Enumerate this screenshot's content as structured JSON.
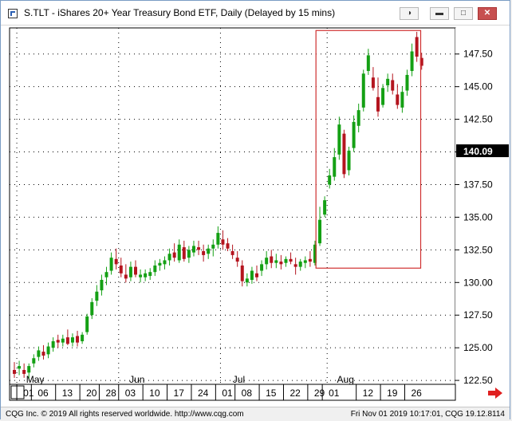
{
  "window": {
    "title": "S.TLT - iShares 20+ Year Treasury Bond ETF, Daily (Delayed by 15 mins)",
    "buttons": [
      "attach-icon",
      "minimize-icon",
      "restore-icon",
      "close-icon"
    ]
  },
  "footer": {
    "left": "CQG Inc. © 2019 All rights reserved worldwide. http://www.cqg.com",
    "right": "Fri Nov 01 2019 10:17:01, CQG 19.12.8114"
  },
  "colors": {
    "up": "#14a014",
    "down": "#b4141e",
    "box": "#d03030",
    "grid": "#000000",
    "last_bg": "#000000",
    "nav_arrow": "#e02020"
  },
  "chart_data": {
    "type": "candlestick",
    "ylim": [
      122.2,
      149.5
    ],
    "y_ticks": [
      122.5,
      125.0,
      127.5,
      130.0,
      132.5,
      135.0,
      137.5,
      140.0,
      142.5,
      145.0,
      147.5
    ],
    "y_tick_labels": [
      "122.50",
      "125.00",
      "127.50",
      "130.00",
      "132.50",
      "135.00",
      "137.50",
      "140.00",
      "142.50",
      "145.00",
      "147.50"
    ],
    "last_price_label": "140.09",
    "last_price": 140.09,
    "month_labels": [
      {
        "label": "May",
        "slot": 1
      },
      {
        "label": "Jun",
        "slot": 22
      },
      {
        "label": "Jul",
        "slot": 43
      },
      {
        "label": "Aug",
        "slot": 65
      }
    ],
    "x_tick_labels": [
      {
        "label": "01",
        "slot": 1
      },
      {
        "label": "06",
        "slot": 4
      },
      {
        "label": "13",
        "slot": 9
      },
      {
        "label": "20",
        "slot": 14
      },
      {
        "label": "28",
        "slot": 18
      },
      {
        "label": "03",
        "slot": 22
      },
      {
        "label": "10",
        "slot": 27
      },
      {
        "label": "17",
        "slot": 32
      },
      {
        "label": "24",
        "slot": 37
      },
      {
        "label": "01",
        "slot": 42
      },
      {
        "label": "08",
        "slot": 46
      },
      {
        "label": "15",
        "slot": 51
      },
      {
        "label": "22",
        "slot": 56
      },
      {
        "label": "29",
        "slot": 61
      },
      {
        "label": "01",
        "slot": 64
      },
      {
        "label": "12",
        "slot": 71
      },
      {
        "label": "19",
        "slot": 76
      },
      {
        "label": "26",
        "slot": 81
      }
    ],
    "highlight_box": {
      "from_slot": 62.2,
      "to_slot": 83.8,
      "y_top": 149.3,
      "y_bottom": 131.1
    },
    "candles": [
      {
        "o": 123.3,
        "h": 123.9,
        "l": 122.7,
        "c": 123.0
      },
      {
        "o": 123.4,
        "h": 124.0,
        "l": 122.9,
        "c": 123.6
      },
      {
        "o": 123.3,
        "h": 123.8,
        "l": 122.7,
        "c": 123.0
      },
      {
        "o": 123.1,
        "h": 123.8,
        "l": 122.6,
        "c": 123.6
      },
      {
        "o": 123.8,
        "h": 124.5,
        "l": 123.5,
        "c": 124.2
      },
      {
        "o": 124.3,
        "h": 125.1,
        "l": 124.0,
        "c": 124.8
      },
      {
        "o": 124.7,
        "h": 125.2,
        "l": 124.1,
        "c": 124.4
      },
      {
        "o": 124.5,
        "h": 125.4,
        "l": 124.2,
        "c": 125.1
      },
      {
        "o": 125.0,
        "h": 125.8,
        "l": 124.7,
        "c": 125.5
      },
      {
        "o": 125.6,
        "h": 126.0,
        "l": 125.0,
        "c": 125.4
      },
      {
        "o": 125.4,
        "h": 126.0,
        "l": 125.1,
        "c": 125.7
      },
      {
        "o": 125.8,
        "h": 126.4,
        "l": 125.2,
        "c": 125.3
      },
      {
        "o": 125.4,
        "h": 126.1,
        "l": 125.1,
        "c": 125.8
      },
      {
        "o": 125.9,
        "h": 126.3,
        "l": 125.1,
        "c": 125.4
      },
      {
        "o": 125.5,
        "h": 126.2,
        "l": 125.3,
        "c": 126.0
      },
      {
        "o": 126.2,
        "h": 127.6,
        "l": 126.0,
        "c": 127.4
      },
      {
        "o": 127.5,
        "h": 128.8,
        "l": 127.2,
        "c": 128.5
      },
      {
        "o": 128.6,
        "h": 129.8,
        "l": 128.2,
        "c": 129.3
      },
      {
        "o": 129.4,
        "h": 130.6,
        "l": 129.0,
        "c": 130.2
      },
      {
        "o": 130.4,
        "h": 131.2,
        "l": 129.8,
        "c": 130.8
      },
      {
        "o": 130.9,
        "h": 132.3,
        "l": 130.6,
        "c": 131.9
      },
      {
        "o": 131.8,
        "h": 132.6,
        "l": 131.0,
        "c": 131.4
      },
      {
        "o": 131.3,
        "h": 131.9,
        "l": 130.4,
        "c": 130.7
      },
      {
        "o": 130.6,
        "h": 131.4,
        "l": 130.0,
        "c": 130.3
      },
      {
        "o": 130.4,
        "h": 131.6,
        "l": 130.1,
        "c": 131.2
      },
      {
        "o": 131.2,
        "h": 131.7,
        "l": 130.4,
        "c": 130.6
      },
      {
        "o": 130.4,
        "h": 131.0,
        "l": 130.0,
        "c": 130.6
      },
      {
        "o": 130.4,
        "h": 131.0,
        "l": 130.1,
        "c": 130.7
      },
      {
        "o": 130.5,
        "h": 131.1,
        "l": 130.2,
        "c": 130.8
      },
      {
        "o": 130.8,
        "h": 131.7,
        "l": 130.5,
        "c": 131.3
      },
      {
        "o": 131.3,
        "h": 131.8,
        "l": 130.9,
        "c": 131.5
      },
      {
        "o": 131.4,
        "h": 132.0,
        "l": 131.0,
        "c": 131.7
      },
      {
        "o": 131.7,
        "h": 132.6,
        "l": 131.3,
        "c": 132.2
      },
      {
        "o": 132.3,
        "h": 133.0,
        "l": 131.6,
        "c": 131.9
      },
      {
        "o": 131.7,
        "h": 133.3,
        "l": 131.5,
        "c": 132.9
      },
      {
        "o": 132.7,
        "h": 133.2,
        "l": 131.6,
        "c": 131.8
      },
      {
        "o": 131.9,
        "h": 132.8,
        "l": 131.5,
        "c": 132.5
      },
      {
        "o": 132.3,
        "h": 133.2,
        "l": 132.0,
        "c": 132.8
      },
      {
        "o": 132.7,
        "h": 133.2,
        "l": 132.1,
        "c": 132.5
      },
      {
        "o": 132.4,
        "h": 132.9,
        "l": 131.6,
        "c": 132.1
      },
      {
        "o": 132.2,
        "h": 132.9,
        "l": 131.8,
        "c": 132.6
      },
      {
        "o": 132.6,
        "h": 133.3,
        "l": 132.0,
        "c": 132.9
      },
      {
        "o": 132.9,
        "h": 134.3,
        "l": 132.6,
        "c": 133.8
      },
      {
        "o": 133.3,
        "h": 134.0,
        "l": 132.5,
        "c": 132.9
      },
      {
        "o": 133.0,
        "h": 133.4,
        "l": 132.4,
        "c": 132.6
      },
      {
        "o": 132.4,
        "h": 132.9,
        "l": 131.8,
        "c": 132.1
      },
      {
        "o": 131.9,
        "h": 132.4,
        "l": 131.2,
        "c": 131.6
      },
      {
        "o": 131.3,
        "h": 131.7,
        "l": 129.7,
        "c": 130.1
      },
      {
        "o": 130.0,
        "h": 130.7,
        "l": 129.7,
        "c": 130.3
      },
      {
        "o": 130.2,
        "h": 131.2,
        "l": 129.9,
        "c": 130.9
      },
      {
        "o": 130.7,
        "h": 131.3,
        "l": 130.1,
        "c": 130.4
      },
      {
        "o": 130.9,
        "h": 131.7,
        "l": 130.5,
        "c": 131.4
      },
      {
        "o": 131.4,
        "h": 132.4,
        "l": 131.0,
        "c": 131.9
      },
      {
        "o": 132.0,
        "h": 132.5,
        "l": 131.1,
        "c": 131.5
      },
      {
        "o": 131.5,
        "h": 132.2,
        "l": 131.1,
        "c": 131.7
      },
      {
        "o": 131.6,
        "h": 132.1,
        "l": 131.0,
        "c": 131.4
      },
      {
        "o": 131.5,
        "h": 132.0,
        "l": 131.2,
        "c": 131.8
      },
      {
        "o": 131.8,
        "h": 132.3,
        "l": 131.4,
        "c": 131.6
      },
      {
        "o": 131.4,
        "h": 131.9,
        "l": 130.6,
        "c": 131.2
      },
      {
        "o": 131.2,
        "h": 131.8,
        "l": 130.9,
        "c": 131.6
      },
      {
        "o": 131.5,
        "h": 132.0,
        "l": 131.1,
        "c": 131.7
      },
      {
        "o": 131.8,
        "h": 132.4,
        "l": 131.2,
        "c": 131.6
      },
      {
        "o": 131.5,
        "h": 133.2,
        "l": 131.3,
        "c": 132.9
      },
      {
        "o": 133.0,
        "h": 135.8,
        "l": 132.8,
        "c": 134.8
      },
      {
        "o": 135.2,
        "h": 136.6,
        "l": 135.0,
        "c": 136.3
      },
      {
        "o": 137.5,
        "h": 138.7,
        "l": 137.2,
        "c": 138.2
      },
      {
        "o": 138.1,
        "h": 140.3,
        "l": 137.8,
        "c": 139.6
      },
      {
        "o": 139.8,
        "h": 142.7,
        "l": 139.4,
        "c": 142.1
      },
      {
        "o": 141.4,
        "h": 141.7,
        "l": 138.0,
        "c": 138.3
      },
      {
        "o": 138.6,
        "h": 140.4,
        "l": 138.2,
        "c": 140.1
      },
      {
        "o": 140.3,
        "h": 142.8,
        "l": 140.0,
        "c": 142.3
      },
      {
        "o": 142.0,
        "h": 143.7,
        "l": 141.5,
        "c": 143.2
      },
      {
        "o": 143.4,
        "h": 146.3,
        "l": 143.1,
        "c": 146.0
      },
      {
        "o": 146.2,
        "h": 147.9,
        "l": 145.9,
        "c": 147.4
      },
      {
        "o": 145.7,
        "h": 146.5,
        "l": 144.7,
        "c": 144.9
      },
      {
        "o": 144.2,
        "h": 145.7,
        "l": 142.7,
        "c": 143.1
      },
      {
        "o": 143.6,
        "h": 145.2,
        "l": 143.4,
        "c": 144.9
      },
      {
        "o": 145.1,
        "h": 146.0,
        "l": 144.6,
        "c": 145.6
      },
      {
        "o": 145.5,
        "h": 146.0,
        "l": 144.4,
        "c": 144.7
      },
      {
        "o": 144.4,
        "h": 145.2,
        "l": 143.3,
        "c": 143.6
      },
      {
        "o": 143.4,
        "h": 145.0,
        "l": 143.0,
        "c": 144.6
      },
      {
        "o": 144.7,
        "h": 146.3,
        "l": 144.3,
        "c": 145.9
      },
      {
        "o": 146.2,
        "h": 148.3,
        "l": 145.8,
        "c": 147.7
      },
      {
        "o": 148.8,
        "h": 149.2,
        "l": 146.9,
        "c": 147.3
      },
      {
        "o": 147.2,
        "h": 147.6,
        "l": 146.3,
        "c": 146.6
      }
    ]
  }
}
